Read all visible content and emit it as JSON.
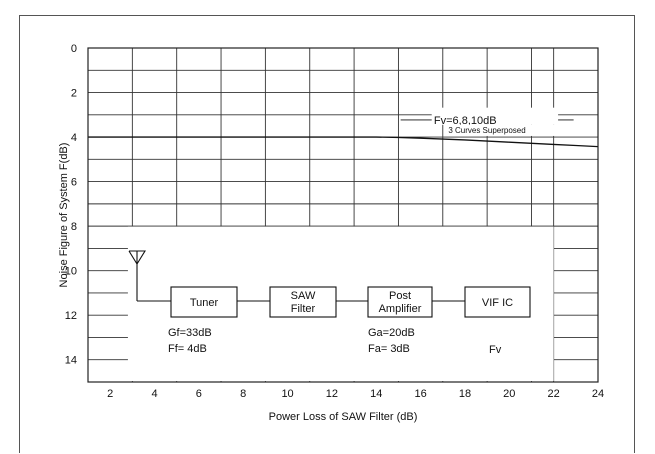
{
  "chart_data": {
    "type": "line",
    "xlabel": "Power Loss of SAW Filter (dB)",
    "ylabel": "Noise Figure of System F(dB)",
    "xlim": [
      1,
      24
    ],
    "ylim": [
      0,
      15
    ],
    "y_axis_inverted": true,
    "x_ticks": [
      2,
      4,
      6,
      8,
      10,
      12,
      14,
      16,
      18,
      20,
      22,
      24
    ],
    "y_ticks": [
      0,
      2,
      4,
      6,
      8,
      10,
      12,
      14
    ],
    "grid": true,
    "series": [
      {
        "name": "Fv=6,8,10dB",
        "x": [
          1,
          4,
          8,
          12,
          14,
          15,
          16,
          17,
          18,
          19,
          20,
          21,
          22,
          23,
          24
        ],
        "y": [
          4.0,
          4.0,
          4.0,
          4.0,
          4.0,
          4.02,
          4.05,
          4.09,
          4.13,
          4.18,
          4.23,
          4.28,
          4.33,
          4.38,
          4.43
        ]
      }
    ],
    "annotations": {
      "curve_label": "Fv=6,8,10dB",
      "curve_note": "3 Curves Superposed"
    },
    "block_diagram": {
      "blocks": [
        {
          "line1": "Tuner",
          "line2": ""
        },
        {
          "line1": "SAW",
          "line2": "Filter"
        },
        {
          "line1": "Post",
          "line2": "Amplifier"
        },
        {
          "line1": "VIF IC",
          "line2": ""
        }
      ],
      "tuner_gain": "Gf=33dB",
      "tuner_nf": "Ff=  4dB",
      "amp_gain": "Ga=20dB",
      "amp_nf": "Fa=  3dB",
      "vif_nf": "Fv"
    }
  }
}
